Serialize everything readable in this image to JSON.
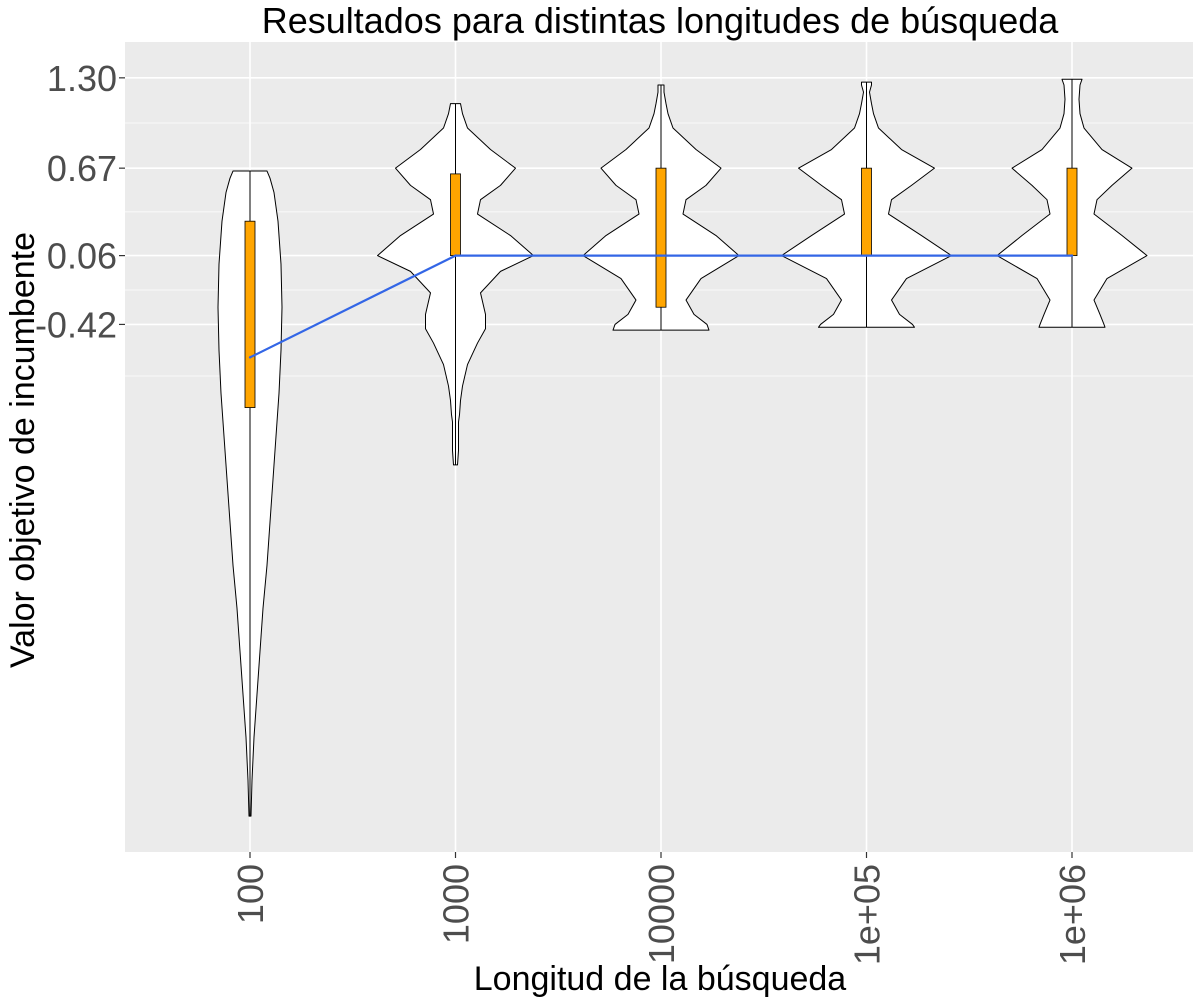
{
  "chart_data": {
    "type": "violin",
    "title": "Resultados para distintas longitudes de búsqueda",
    "xlabel": "Longitud de la búsqueda",
    "ylabel": "Valor objetivo de incumbente",
    "categories": [
      "100",
      "1000",
      "10000",
      "1e+05",
      "1e+06"
    ],
    "y_ticks": [
      -0.42,
      0.06,
      0.67,
      1.3
    ],
    "y_tick_labels": [
      "-0.42",
      "0.06",
      "0.67",
      "1.30"
    ],
    "ylim": [
      -4.1,
      1.55
    ],
    "grid": true,
    "legend": "none",
    "colors": {
      "panel": "#ebebeb",
      "grid": "#ffffff",
      "violin_fill": "#ffffff",
      "violin_stroke": "#000000",
      "box_fill": "#ffa500",
      "median_line": "#3366e6"
    },
    "box": [
      {
        "category": "100",
        "q1": -1.0,
        "median": -0.65,
        "q3": 0.3
      },
      {
        "category": "1000",
        "q1": 0.06,
        "median": 0.06,
        "q3": 0.63
      },
      {
        "category": "10000",
        "q1": -0.3,
        "median": 0.06,
        "q3": 0.67
      },
      {
        "category": "1e+05",
        "q1": 0.06,
        "median": 0.06,
        "q3": 0.67
      },
      {
        "category": "1e+06",
        "q1": 0.06,
        "median": 0.06,
        "q3": 0.67
      }
    ],
    "violins": [
      {
        "category": "100",
        "profile": [
          [
            -3.85,
            0.01
          ],
          [
            -3.6,
            0.02
          ],
          [
            -3.3,
            0.04
          ],
          [
            -3.0,
            0.07
          ],
          [
            -2.7,
            0.1
          ],
          [
            -2.4,
            0.13
          ],
          [
            -2.1,
            0.17
          ],
          [
            -1.8,
            0.2
          ],
          [
            -1.5,
            0.23
          ],
          [
            -1.2,
            0.26
          ],
          [
            -0.9,
            0.29
          ],
          [
            -0.6,
            0.31
          ],
          [
            -0.3,
            0.32
          ],
          [
            0.0,
            0.31
          ],
          [
            0.3,
            0.28
          ],
          [
            0.5,
            0.24
          ],
          [
            0.6,
            0.2
          ],
          [
            0.65,
            0.17
          ]
        ]
      },
      {
        "category": "1000",
        "profile": [
          [
            -1.4,
            0.02
          ],
          [
            -1.3,
            0.03
          ],
          [
            -1.2,
            0.03
          ],
          [
            -1.1,
            0.03
          ],
          [
            -1.05,
            0.04
          ],
          [
            -0.95,
            0.05
          ],
          [
            -0.85,
            0.07
          ],
          [
            -0.7,
            0.12
          ],
          [
            -0.55,
            0.22
          ],
          [
            -0.45,
            0.3
          ],
          [
            -0.35,
            0.3
          ],
          [
            -0.2,
            0.25
          ],
          [
            -0.05,
            0.45
          ],
          [
            0.06,
            0.78
          ],
          [
            0.2,
            0.55
          ],
          [
            0.35,
            0.22
          ],
          [
            0.45,
            0.25
          ],
          [
            0.55,
            0.45
          ],
          [
            0.67,
            0.6
          ],
          [
            0.8,
            0.35
          ],
          [
            0.95,
            0.12
          ],
          [
            1.05,
            0.07
          ],
          [
            1.12,
            0.05
          ]
        ]
      },
      {
        "category": "10000",
        "profile": [
          [
            -0.46,
            0.48
          ],
          [
            -0.42,
            0.46
          ],
          [
            -0.35,
            0.33
          ],
          [
            -0.25,
            0.25
          ],
          [
            -0.1,
            0.4
          ],
          [
            0.06,
            0.78
          ],
          [
            0.2,
            0.55
          ],
          [
            0.35,
            0.22
          ],
          [
            0.45,
            0.25
          ],
          [
            0.55,
            0.45
          ],
          [
            0.67,
            0.6
          ],
          [
            0.8,
            0.35
          ],
          [
            0.95,
            0.12
          ],
          [
            1.05,
            0.07
          ],
          [
            1.12,
            0.05
          ],
          [
            1.2,
            0.03
          ],
          [
            1.25,
            0.03
          ]
        ]
      },
      {
        "category": "1e+05",
        "profile": [
          [
            -0.44,
            0.48
          ],
          [
            -0.42,
            0.46
          ],
          [
            -0.35,
            0.33
          ],
          [
            -0.25,
            0.25
          ],
          [
            -0.1,
            0.4
          ],
          [
            0.06,
            0.85
          ],
          [
            0.2,
            0.55
          ],
          [
            0.35,
            0.22
          ],
          [
            0.45,
            0.25
          ],
          [
            0.55,
            0.45
          ],
          [
            0.67,
            0.68
          ],
          [
            0.8,
            0.35
          ],
          [
            0.95,
            0.12
          ],
          [
            1.05,
            0.07
          ],
          [
            1.12,
            0.05
          ],
          [
            1.2,
            0.03
          ],
          [
            1.25,
            0.05
          ],
          [
            1.27,
            0.05
          ]
        ]
      },
      {
        "category": "1e+06",
        "profile": [
          [
            -0.44,
            0.33
          ],
          [
            -0.42,
            0.32
          ],
          [
            -0.35,
            0.28
          ],
          [
            -0.25,
            0.22
          ],
          [
            -0.1,
            0.35
          ],
          [
            0.06,
            0.75
          ],
          [
            0.2,
            0.5
          ],
          [
            0.35,
            0.22
          ],
          [
            0.45,
            0.25
          ],
          [
            0.55,
            0.4
          ],
          [
            0.67,
            0.6
          ],
          [
            0.8,
            0.3
          ],
          [
            0.95,
            0.12
          ],
          [
            1.05,
            0.08
          ],
          [
            1.15,
            0.07
          ],
          [
            1.25,
            0.08
          ],
          [
            1.29,
            0.1
          ]
        ]
      }
    ]
  }
}
